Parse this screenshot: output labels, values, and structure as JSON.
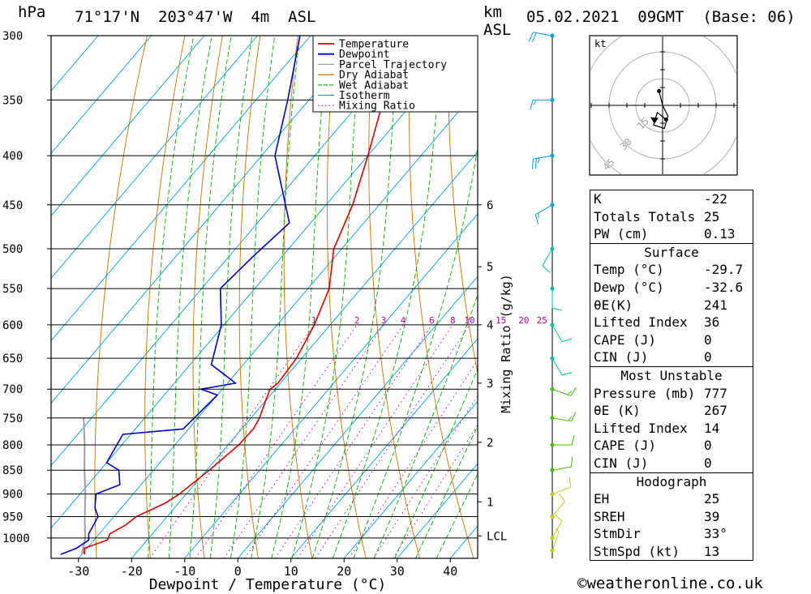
{
  "header": {
    "units_left": "hPa",
    "location": "71°17'N  203°47'W  4m  ASL",
    "km_label": "km",
    "asl_label": "ASL",
    "datetime": "05.02.2021  09GMT  (Base: 06)"
  },
  "chart_data": {
    "type": "skew-t",
    "xlabel": "Dewpoint / Temperature (°C)",
    "ylabel_left": "hPa",
    "ylabel_right": "Mixing Ratio (g/kg)",
    "x_ticks": [
      -30,
      -20,
      -10,
      0,
      10,
      20,
      30,
      40
    ],
    "pressure_levels": [
      300,
      350,
      400,
      450,
      500,
      550,
      600,
      650,
      700,
      750,
      800,
      850,
      900,
      950,
      1000
    ],
    "km_ticks": [
      {
        "label": "1",
        "p": 917
      },
      {
        "label": "2",
        "p": 795
      },
      {
        "label": "3",
        "p": 690
      },
      {
        "label": "4",
        "p": 600
      },
      {
        "label": "5",
        "p": 522
      },
      {
        "label": "6",
        "p": 450
      },
      {
        "label": "LCL",
        "p": 995
      }
    ],
    "mixing_ratio_labels": [
      "1",
      "2",
      "3",
      "4",
      "6",
      "8",
      "10",
      "15",
      "20",
      "25"
    ],
    "mixing_ratio_values": [
      1,
      2,
      3,
      4,
      6,
      8,
      10,
      15,
      20,
      25
    ],
    "legend": [
      {
        "label": "Temperature",
        "color": "#e00000"
      },
      {
        "label": "Dewpoint",
        "color": "#0000cc"
      },
      {
        "label": "Parcel Trajectory",
        "color": "#a0a0a0"
      },
      {
        "label": "Dry Adiabat",
        "color": "#d07000"
      },
      {
        "label": "Wet Adiabat",
        "color": "#00b000"
      },
      {
        "label": "Isotherm",
        "color": "#00a0e0"
      },
      {
        "label": "Mixing Ratio",
        "color": "#c000c0"
      }
    ],
    "temperature": [
      {
        "p": 1040,
        "t": -29.5
      },
      {
        "p": 1025,
        "t": -30.5
      },
      {
        "p": 1005,
        "t": -27.5
      },
      {
        "p": 990,
        "t": -28.0
      },
      {
        "p": 970,
        "t": -26.5
      },
      {
        "p": 950,
        "t": -25.8
      },
      {
        "p": 920,
        "t": -22.5
      },
      {
        "p": 900,
        "t": -21.3
      },
      {
        "p": 850,
        "t": -19.5
      },
      {
        "p": 800,
        "t": -18.0
      },
      {
        "p": 770,
        "t": -17.8
      },
      {
        "p": 750,
        "t": -18.4
      },
      {
        "p": 720,
        "t": -20.0
      },
      {
        "p": 700,
        "t": -21.0
      },
      {
        "p": 690,
        "t": -20.5
      },
      {
        "p": 650,
        "t": -21.0
      },
      {
        "p": 600,
        "t": -23.0
      },
      {
        "p": 550,
        "t": -26.0
      },
      {
        "p": 500,
        "t": -31.5
      },
      {
        "p": 450,
        "t": -35.0
      },
      {
        "p": 400,
        "t": -40.0
      },
      {
        "p": 350,
        "t": -46.0
      },
      {
        "p": 300,
        "t": -52.5
      }
    ],
    "dewpoint": [
      {
        "p": 1040,
        "t": -34.0
      },
      {
        "p": 1025,
        "t": -32.0
      },
      {
        "p": 1005,
        "t": -31.0
      },
      {
        "p": 990,
        "t": -32.0
      },
      {
        "p": 970,
        "t": -32.5
      },
      {
        "p": 950,
        "t": -33.0
      },
      {
        "p": 930,
        "t": -35.0
      },
      {
        "p": 900,
        "t": -37.0
      },
      {
        "p": 880,
        "t": -34.0
      },
      {
        "p": 850,
        "t": -36.5
      },
      {
        "p": 835,
        "t": -40.0
      },
      {
        "p": 780,
        "t": -41.5
      },
      {
        "p": 770,
        "t": -31.0
      },
      {
        "p": 710,
        "t": -30.0
      },
      {
        "p": 700,
        "t": -34.0
      },
      {
        "p": 690,
        "t": -28.5
      },
      {
        "p": 660,
        "t": -36.0
      },
      {
        "p": 600,
        "t": -40.5
      },
      {
        "p": 550,
        "t": -46.5
      },
      {
        "p": 510,
        "t": -45.5
      },
      {
        "p": 470,
        "t": -44.0
      },
      {
        "p": 400,
        "t": -57.5
      },
      {
        "p": 350,
        "t": -64.0
      },
      {
        "p": 300,
        "t": -72.0
      }
    ],
    "parcel": [
      {
        "p": 1040,
        "t": -30.0
      },
      {
        "p": 1000,
        "t": -32.0
      },
      {
        "p": 950,
        "t": -35.5
      },
      {
        "p": 900,
        "t": -39.0
      },
      {
        "p": 850,
        "t": -43.0
      },
      {
        "p": 800,
        "t": -47.0
      },
      {
        "p": 750,
        "t": -51.5
      }
    ],
    "wind_barbs": [
      {
        "p": 1030,
        "dir": 20,
        "spd": 5
      },
      {
        "p": 1000,
        "dir": 30,
        "spd": 10
      },
      {
        "p": 950,
        "dir": 40,
        "spd": 10
      },
      {
        "p": 900,
        "dir": 70,
        "spd": 10
      },
      {
        "p": 850,
        "dir": 80,
        "spd": 10
      },
      {
        "p": 800,
        "dir": 90,
        "spd": 10
      },
      {
        "p": 750,
        "dir": 100,
        "spd": 15
      },
      {
        "p": 700,
        "dir": 110,
        "spd": 15
      },
      {
        "p": 650,
        "dir": 150,
        "spd": 10
      },
      {
        "p": 600,
        "dir": 150,
        "spd": 10
      },
      {
        "p": 550,
        "dir": 180,
        "spd": 10
      },
      {
        "p": 500,
        "dir": 210,
        "spd": 10
      },
      {
        "p": 450,
        "dir": 240,
        "spd": 15
      },
      {
        "p": 400,
        "dir": 260,
        "spd": 25
      },
      {
        "p": 350,
        "dir": 270,
        "spd": 15
      },
      {
        "p": 300,
        "dir": 280,
        "spd": 20
      }
    ],
    "hodograph": {
      "unit": "kt",
      "ring_labels": [
        "15",
        "30",
        "45"
      ],
      "points": [
        {
          "u": -2,
          "v": 8
        },
        {
          "u": 0,
          "v": 0
        },
        {
          "u": 3,
          "v": -6
        },
        {
          "u": 1,
          "v": -13
        },
        {
          "u": -5,
          "v": -11
        },
        {
          "u": -3,
          "v": -4
        },
        {
          "u": 2,
          "v": -8
        }
      ],
      "storm_motion": {
        "u": -5,
        "v": -8
      }
    }
  },
  "indices": {
    "top": [
      {
        "label": "K",
        "value": "-22"
      },
      {
        "label": "Totals Totals",
        "value": "25"
      },
      {
        "label": "PW (cm)",
        "value": "0.13"
      }
    ],
    "surface": {
      "title": "Surface",
      "rows": [
        {
          "label": "Temp (°C)",
          "value": "-29.7"
        },
        {
          "label": "Dewp (°C)",
          "value": "-32.6"
        },
        {
          "label": "θE(K)",
          "value": "241"
        },
        {
          "label": "Lifted Index",
          "value": "36"
        },
        {
          "label": "CAPE (J)",
          "value": "0"
        },
        {
          "label": "CIN (J)",
          "value": "0"
        }
      ]
    },
    "most_unstable": {
      "title": "Most Unstable",
      "rows": [
        {
          "label": "Pressure (mb)",
          "value": "777"
        },
        {
          "label": "θE (K)",
          "value": "267"
        },
        {
          "label": "Lifted Index",
          "value": "14"
        },
        {
          "label": "CAPE (J)",
          "value": "0"
        },
        {
          "label": "CIN (J)",
          "value": "0"
        }
      ]
    },
    "hodograph": {
      "title": "Hodograph",
      "rows": [
        {
          "label": "EH",
          "value": "25"
        },
        {
          "label": "SREH",
          "value": "39"
        },
        {
          "label": "StmDir",
          "value": "33°"
        },
        {
          "label": "StmSpd (kt)",
          "value": "13"
        }
      ]
    }
  },
  "footer": {
    "copyright": "©weatheronline.co.uk"
  },
  "colors": {
    "temperature": "#e00000",
    "dewpoint": "#0000cc",
    "parcel": "#a0a0a0",
    "dry_adiabat": "#d07000",
    "wet_adiabat": "#00b000",
    "isotherm": "#00a0e0",
    "mixing_ratio": "#c000c0",
    "wind_axis": "#000000"
  }
}
